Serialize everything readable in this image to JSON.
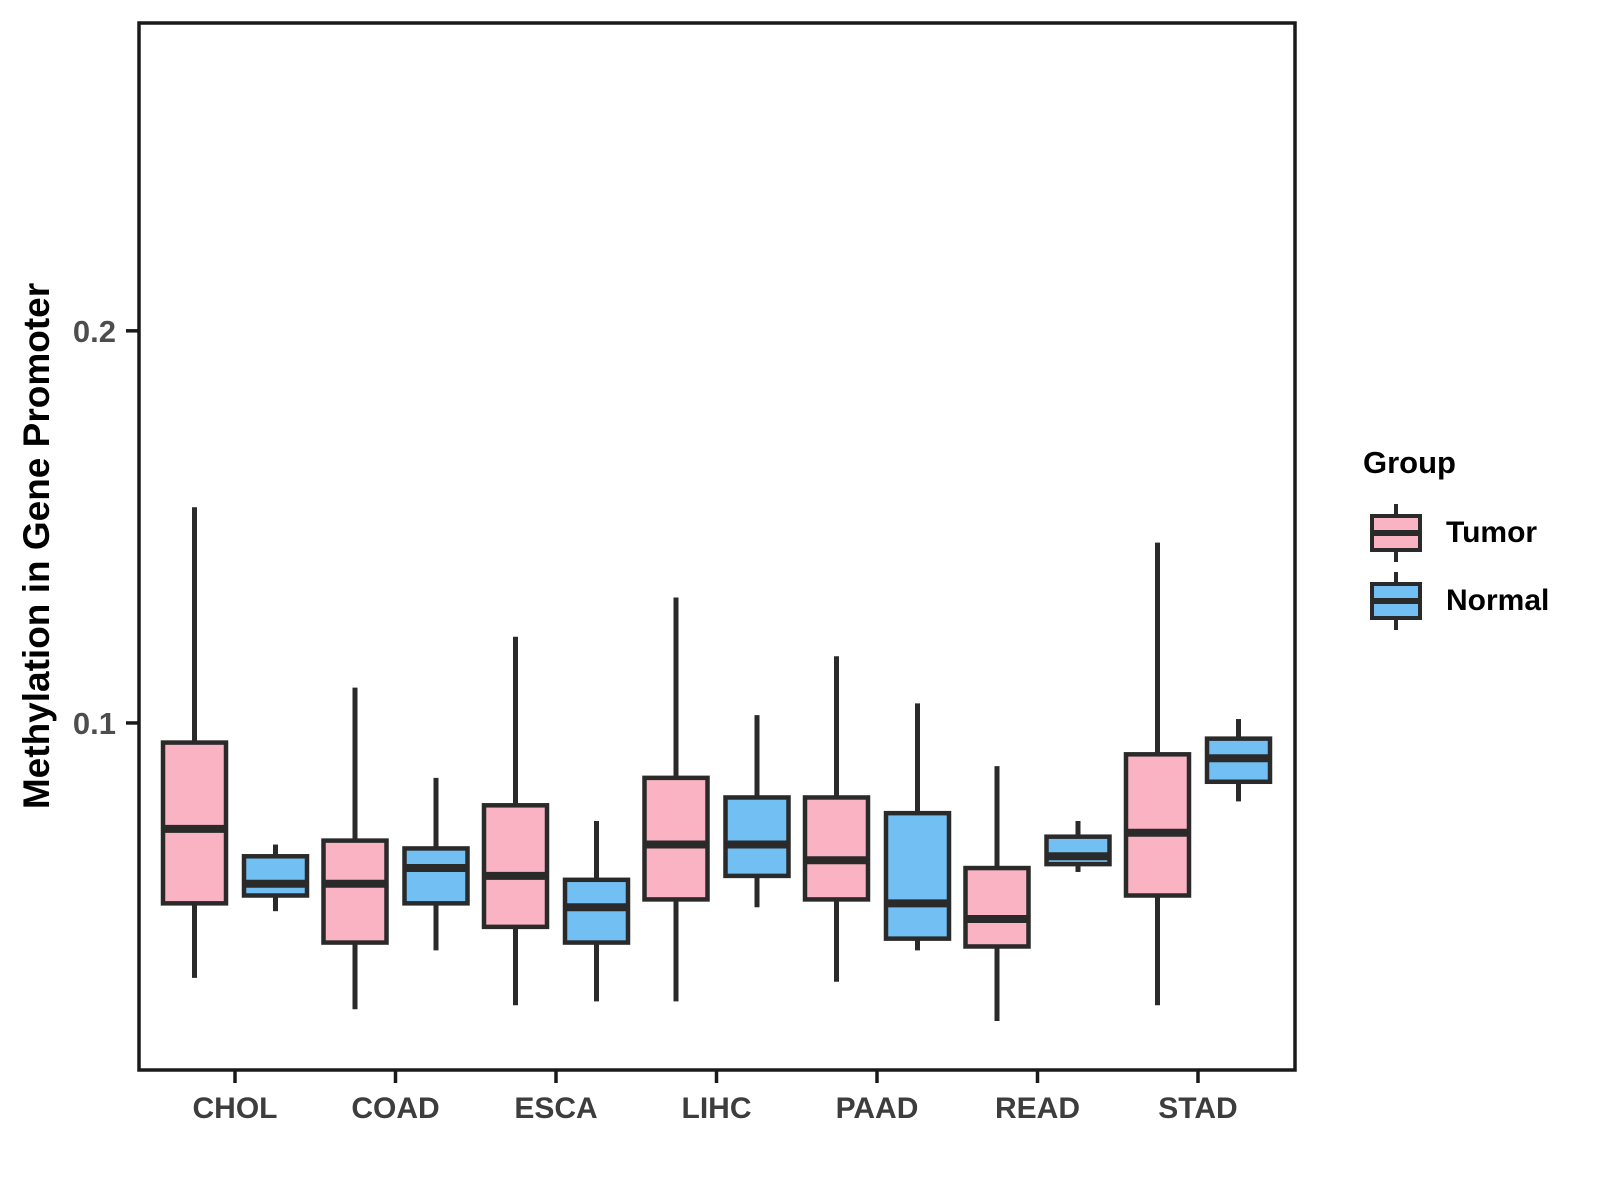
{
  "legend": {
    "title": "Group",
    "items": [
      {
        "label": "Tumor",
        "color": "#FAB3C3"
      },
      {
        "label": "Normal",
        "color": "#72BFF3"
      }
    ]
  },
  "chart_data": {
    "type": "boxplot",
    "title": "",
    "xlabel": "",
    "ylabel": "Methylation in Gene Promoter",
    "categories": [
      "CHOL",
      "COAD",
      "ESCA",
      "LIHC",
      "PAAD",
      "READ",
      "STAD"
    ],
    "yticks": [
      {
        "value": 0.1,
        "label": "0.1"
      },
      {
        "value": 0.2,
        "label": "0.2"
      }
    ],
    "ylim": [
      0.0115,
      0.2785
    ],
    "grid": false,
    "legend_position": "right",
    "box_border_color": "#2A2A2A",
    "axis_color": "#1A1A1A",
    "groups": [
      {
        "name": "Tumor",
        "color": "#FAB3C3",
        "boxes": [
          {
            "category": "CHOL",
            "whisker_low": 0.035,
            "q1": 0.054,
            "median": 0.073,
            "q3": 0.095,
            "whisker_high": 0.155
          },
          {
            "category": "COAD",
            "whisker_low": 0.027,
            "q1": 0.044,
            "median": 0.059,
            "q3": 0.07,
            "whisker_high": 0.109
          },
          {
            "category": "ESCA",
            "whisker_low": 0.028,
            "q1": 0.048,
            "median": 0.061,
            "q3": 0.079,
            "whisker_high": 0.122
          },
          {
            "category": "LIHC",
            "whisker_low": 0.029,
            "q1": 0.055,
            "median": 0.069,
            "q3": 0.086,
            "whisker_high": 0.132
          },
          {
            "category": "PAAD",
            "whisker_low": 0.034,
            "q1": 0.055,
            "median": 0.065,
            "q3": 0.081,
            "whisker_high": 0.117
          },
          {
            "category": "READ",
            "whisker_low": 0.024,
            "q1": 0.043,
            "median": 0.05,
            "q3": 0.063,
            "whisker_high": 0.089
          },
          {
            "category": "STAD",
            "whisker_low": 0.028,
            "q1": 0.056,
            "median": 0.072,
            "q3": 0.092,
            "whisker_high": 0.146
          }
        ]
      },
      {
        "name": "Normal",
        "color": "#72BFF3",
        "boxes": [
          {
            "category": "CHOL",
            "whisker_low": 0.052,
            "q1": 0.056,
            "median": 0.059,
            "q3": 0.066,
            "whisker_high": 0.069
          },
          {
            "category": "COAD",
            "whisker_low": 0.042,
            "q1": 0.054,
            "median": 0.063,
            "q3": 0.068,
            "whisker_high": 0.086
          },
          {
            "category": "ESCA",
            "whisker_low": 0.029,
            "q1": 0.044,
            "median": 0.053,
            "q3": 0.06,
            "whisker_high": 0.075
          },
          {
            "category": "LIHC",
            "whisker_low": 0.053,
            "q1": 0.061,
            "median": 0.069,
            "q3": 0.081,
            "whisker_high": 0.102
          },
          {
            "category": "PAAD",
            "whisker_low": 0.042,
            "q1": 0.045,
            "median": 0.054,
            "q3": 0.077,
            "whisker_high": 0.105
          },
          {
            "category": "READ",
            "whisker_low": 0.062,
            "q1": 0.064,
            "median": 0.066,
            "q3": 0.071,
            "whisker_high": 0.075
          },
          {
            "category": "STAD",
            "whisker_low": 0.08,
            "q1": 0.085,
            "median": 0.091,
            "q3": 0.096,
            "whisker_high": 0.101
          }
        ]
      }
    ]
  }
}
